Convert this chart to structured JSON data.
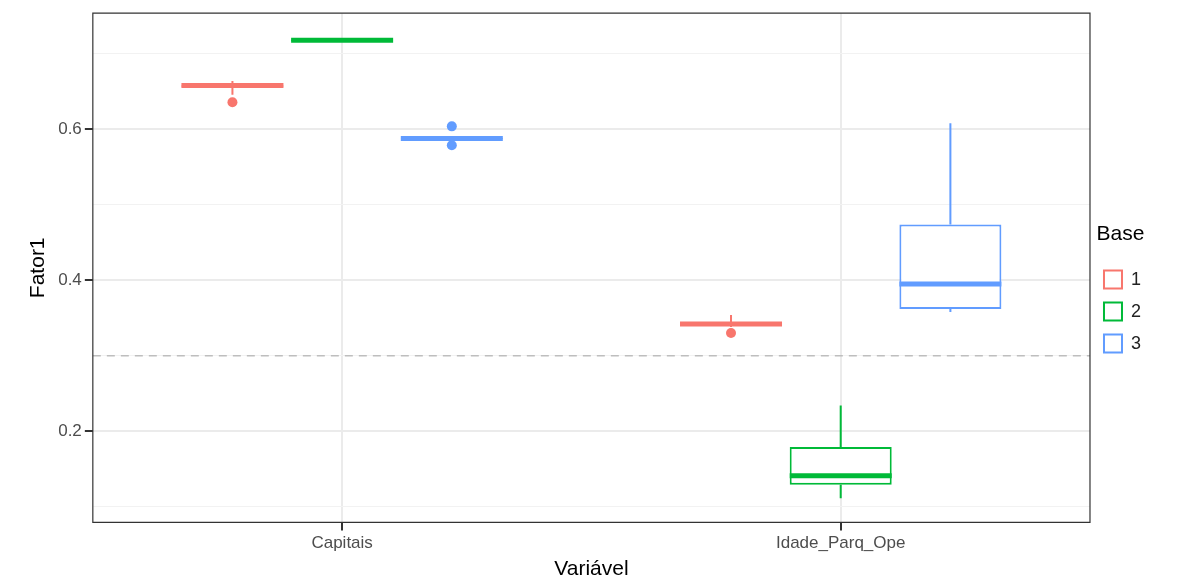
{
  "chart_data": {
    "type": "box",
    "xlabel": "Variável",
    "ylabel": "Fator1",
    "legend_title": "Base",
    "legend": "right",
    "grid": true,
    "categories": [
      "Capitais",
      "Idade_Parq_Ope"
    ],
    "ylim": [
      0.079,
      0.754
    ],
    "yticks": [
      {
        "value": 0.1,
        "label": null
      },
      0.2,
      {
        "value": 0.3,
        "label": null
      },
      0.4,
      {
        "value": 0.5,
        "label": null
      },
      0.6,
      {
        "value": 0.7,
        "label": null
      }
    ],
    "ref_lines": [
      {
        "axis": "y",
        "value": 0.3,
        "color": "#bebebe",
        "line_style": "dashed"
      }
    ],
    "series": [
      {
        "name": "1",
        "color": "#f8766d",
        "boxes": [
          {
            "low": 0.646,
            "q1": 0.656,
            "median": 0.658,
            "q3": 0.659,
            "high": 0.664,
            "outliers": [
              0.636
            ]
          },
          {
            "low": 0.338,
            "q1": 0.34,
            "median": 0.342,
            "q3": 0.344,
            "high": 0.354,
            "outliers": [
              0.33
            ]
          }
        ]
      },
      {
        "name": "2",
        "color": "#00ba38",
        "boxes": [
          {
            "low": 0.716,
            "q1": 0.717,
            "median": 0.718,
            "q3": 0.719,
            "high": 0.721
          },
          {
            "low": 0.111,
            "q1": 0.129,
            "median": 0.141,
            "q3": 0.179,
            "high": 0.234
          }
        ]
      },
      {
        "name": "3",
        "color": "#619cff",
        "boxes": [
          {
            "low": 0.586,
            "q1": 0.587,
            "median": 0.588,
            "q3": 0.589,
            "high": 0.59,
            "outliers": [
              0.604,
              0.579
            ]
          },
          {
            "low": 0.358,
            "q1": 0.362,
            "median": 0.395,
            "q3": 0.474,
            "high": 0.608
          }
        ]
      }
    ]
  }
}
